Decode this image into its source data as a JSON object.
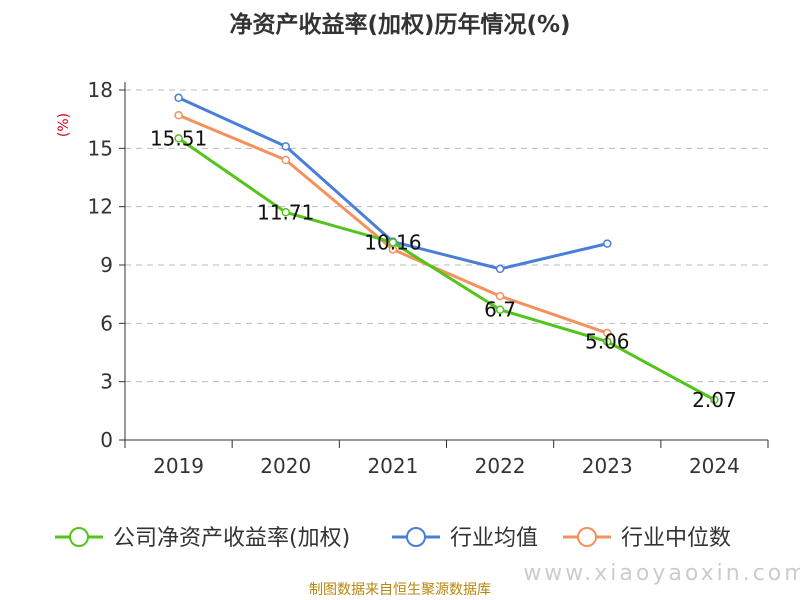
{
  "chart_data": {
    "type": "line",
    "title": "净资产收益率(加权)历年情况(%)",
    "ylabel": "(%)",
    "categories": [
      "2019",
      "2020",
      "2021",
      "2022",
      "2023",
      "2024"
    ],
    "ylim": [
      0,
      18
    ],
    "yticks": [
      0,
      3,
      6,
      9,
      12,
      15,
      18
    ],
    "grid": true,
    "legend_position": "bottom",
    "series": [
      {
        "name": "公司净资产收益率(加权)",
        "color": "#52c41a",
        "values": [
          15.51,
          11.71,
          10.16,
          6.7,
          5.06,
          2.07
        ],
        "labels": [
          "15.51",
          "11.71",
          "10.16",
          "6.7",
          "5.06",
          "2.07"
        ]
      },
      {
        "name": "行业均值",
        "color": "#4a7fd8",
        "values": [
          17.6,
          15.1,
          10.2,
          8.8,
          10.1,
          null
        ]
      },
      {
        "name": "行业中位数",
        "color": "#f5915c",
        "values": [
          16.7,
          14.4,
          9.8,
          7.4,
          5.5,
          null
        ]
      }
    ]
  },
  "footer": {
    "source": "制图数据来自恒生聚源数据库",
    "watermark": "www.xiaoyaoxin.com"
  }
}
